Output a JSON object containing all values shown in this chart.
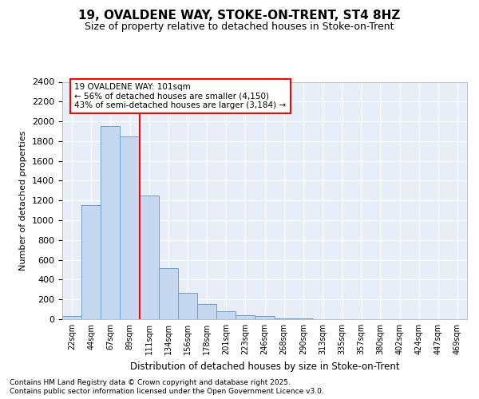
{
  "title1": "19, OVALDENE WAY, STOKE-ON-TRENT, ST4 8HZ",
  "title2": "Size of property relative to detached houses in Stoke-on-Trent",
  "xlabel": "Distribution of detached houses by size in Stoke-on-Trent",
  "ylabel": "Number of detached properties",
  "footnote1": "Contains HM Land Registry data © Crown copyright and database right 2025.",
  "footnote2": "Contains public sector information licensed under the Open Government Licence v3.0.",
  "annotation_title": "19 OVALDENE WAY: 101sqm",
  "annotation_line1": "← 56% of detached houses are smaller (4,150)",
  "annotation_line2": "43% of semi-detached houses are larger (3,184) →",
  "red_line_x": 4.0,
  "bar_color": "#c5d8f0",
  "bar_edge_color": "#6ea0cc",
  "ylim": [
    0,
    2400
  ],
  "yticks": [
    0,
    200,
    400,
    600,
    800,
    1000,
    1200,
    1400,
    1600,
    1800,
    2000,
    2200,
    2400
  ],
  "categories": [
    "22sqm",
    "44sqm",
    "67sqm",
    "89sqm",
    "111sqm",
    "134sqm",
    "156sqm",
    "178sqm",
    "201sqm",
    "223sqm",
    "246sqm",
    "268sqm",
    "290sqm",
    "313sqm",
    "335sqm",
    "357sqm",
    "380sqm",
    "402sqm",
    "424sqm",
    "447sqm",
    "469sqm"
  ],
  "values": [
    30,
    1150,
    1950,
    1850,
    1250,
    520,
    270,
    150,
    80,
    40,
    30,
    10,
    5,
    3,
    2,
    1,
    0,
    0,
    0,
    0,
    0
  ],
  "fig_bg": "#ffffff",
  "ax_bg": "#e8eef7",
  "grid_color": "#ffffff",
  "title1_fontsize": 11,
  "title2_fontsize": 9,
  "footnote_fontsize": 6.5
}
